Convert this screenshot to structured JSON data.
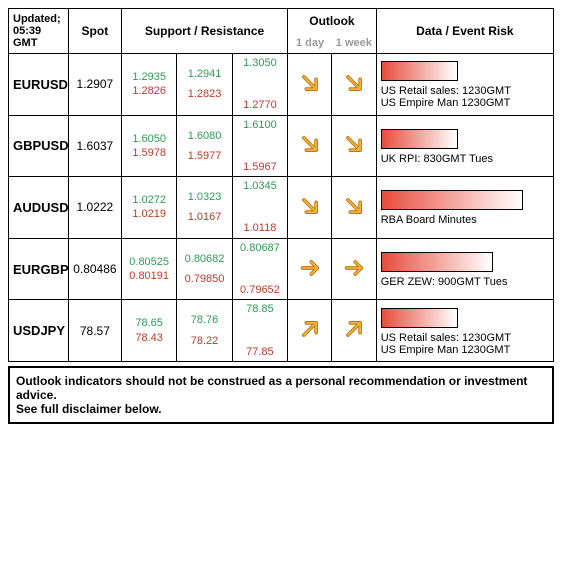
{
  "header": {
    "updated_label": "Updated;",
    "updated_time": "05:39 GMT",
    "spot": "Spot",
    "support_resistance": "Support / Resistance",
    "outlook": "Outlook",
    "outlook_1day": "1 day",
    "outlook_1week": "1 week",
    "data_event_risk": "Data / Event Risk"
  },
  "colors": {
    "support": "#2e9b57",
    "resistance": "#c0392b",
    "arrow_fill": "#f5b041",
    "arrow_stroke": "#b9770e",
    "bar_start": "#e74c3c",
    "bar_end": "#ffffff"
  },
  "rows": [
    {
      "pair": "EURUSD",
      "spot": "1.2907",
      "sr1_sup": "1.2935",
      "sr1_res": "1.2826",
      "sr2_sup": "1.2941",
      "sr2_res": "1.2823",
      "sr3_sup": "1.3050",
      "sr3_res": "1.2770",
      "day_dir": "down-right",
      "week_dir": "down-right",
      "bar_class": "bar-short",
      "risk_line1": "US Retail sales: 1230GMT",
      "risk_line2": "US Empire Man 1230GMT"
    },
    {
      "pair": "GBPUSD",
      "spot": "1.6037",
      "sr1_sup": "1.6050",
      "sr1_res": "1.5978",
      "sr2_sup": "1.6080",
      "sr2_res": "1.5977",
      "sr3_sup": "1.6100",
      "sr3_res": "1.5967",
      "day_dir": "down-right",
      "week_dir": "down-right",
      "bar_class": "bar-short",
      "risk_line1": "UK RPI: 830GMT Tues",
      "risk_line2": ""
    },
    {
      "pair": "AUDUSD",
      "spot": "1.0222",
      "sr1_sup": "1.0272",
      "sr1_res": "1.0219",
      "sr2_sup": "1.0323",
      "sr2_res": "1.0167",
      "sr3_sup": "1.0345",
      "sr3_res": "1.0118",
      "day_dir": "down-right",
      "week_dir": "down-right",
      "bar_class": "bar-long",
      "risk_line1": "RBA Board Minutes",
      "risk_line2": ""
    },
    {
      "pair": "EURGBP",
      "spot": "0.80486",
      "sr1_sup": "0.80525",
      "sr1_res": "0.80191",
      "sr2_sup": "0.80682",
      "sr2_res": "0.79850",
      "sr3_sup": "0.80687",
      "sr3_res": "0.79652",
      "day_dir": "right",
      "week_dir": "right",
      "bar_class": "bar-med",
      "risk_line1": "GER ZEW: 900GMT Tues",
      "risk_line2": ""
    },
    {
      "pair": "USDJPY",
      "spot": "78.57",
      "sr1_sup": "78.65",
      "sr1_res": "78.43",
      "sr2_sup": "78.76",
      "sr2_res": "78.22",
      "sr3_sup": "78.85",
      "sr3_res": "77.85",
      "day_dir": "up-right",
      "week_dir": "up-right",
      "bar_class": "bar-short",
      "risk_line1": "US Retail sales: 1230GMT",
      "risk_line2": "US Empire Man 1230GMT"
    }
  ],
  "disclaimer": {
    "line1": "Outlook indicators should not be construed as a personal recommendation or investment advice.",
    "line2": "See full disclaimer below."
  }
}
